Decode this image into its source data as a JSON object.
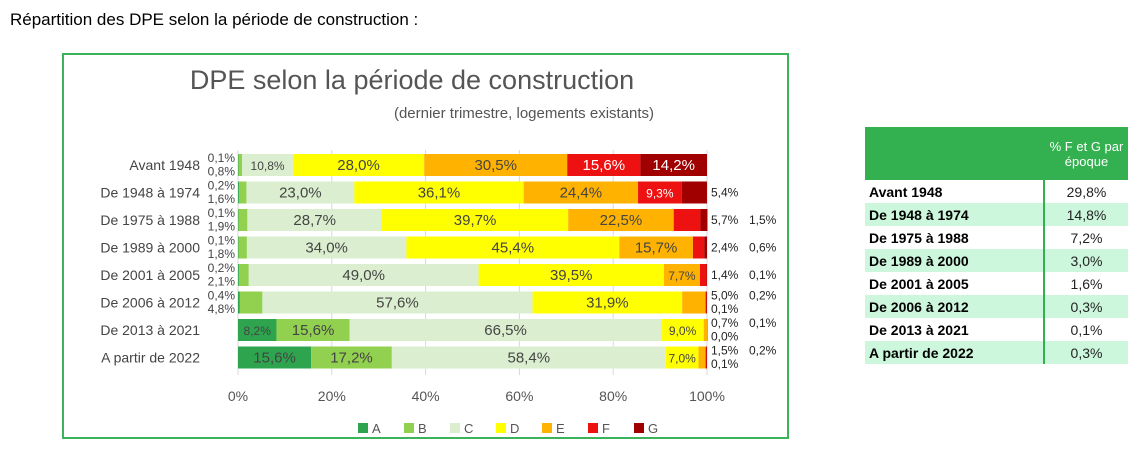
{
  "heading": "Répartition des DPE selon la période de construction :",
  "chart_data": {
    "type": "bar",
    "orientation": "horizontal-stacked-100",
    "title": "DPE selon la période de construction",
    "subtitle": "(dernier trimestre, logements existants)",
    "categories": [
      "Avant 1948",
      "De 1948 à 1974",
      "De 1975 à 1988",
      "De 1989 à 2000",
      "De 2001 à 2005",
      "De 2006 à 2012",
      "De 2013 à 2021",
      "A partir de 2022"
    ],
    "x_ticks": [
      "0%",
      "20%",
      "40%",
      "60%",
      "80%",
      "100%"
    ],
    "xlim": [
      0,
      100
    ],
    "grid": true,
    "legend": "bottom",
    "series": [
      {
        "name": "A",
        "color": "#2ea44f",
        "values": [
          0.1,
          0.2,
          0.1,
          0.1,
          0.2,
          0.4,
          8.2,
          15.6
        ],
        "labels": [
          "0,1%",
          "0,2%",
          "0,1%",
          "0,1%",
          "0,2%",
          "0,4%",
          "8,2%",
          "15,6%"
        ]
      },
      {
        "name": "B",
        "color": "#92d050",
        "values": [
          0.8,
          1.6,
          1.9,
          1.8,
          2.1,
          4.8,
          15.6,
          17.2
        ],
        "labels": [
          "0,8%",
          "1,6%",
          "1,9%",
          "1,8%",
          "2,1%",
          "4,8%",
          "15,6%",
          "17,2%"
        ]
      },
      {
        "name": "C",
        "color": "#dbefd0",
        "values": [
          10.8,
          23.0,
          28.7,
          34.0,
          49.0,
          57.6,
          66.5,
          58.4
        ],
        "labels": [
          "10,8%",
          "23,0%",
          "28,7%",
          "34,0%",
          "49,0%",
          "57,6%",
          "66,5%",
          "58,4%"
        ]
      },
      {
        "name": "D",
        "color": "#ffff00",
        "values": [
          28.0,
          36.1,
          39.7,
          45.4,
          39.5,
          31.9,
          9.0,
          7.0
        ],
        "labels": [
          "28,0%",
          "36,1%",
          "39,7%",
          "45,4%",
          "39,5%",
          "31,9%",
          "9,0%",
          "7,0%"
        ]
      },
      {
        "name": "E",
        "color": "#ffb300",
        "values": [
          30.5,
          24.4,
          22.5,
          15.7,
          7.7,
          5.0,
          0.7,
          1.5
        ],
        "labels": [
          "30,5%",
          "24,4%",
          "22,5%",
          "15,7%",
          "7,7%",
          "5,0%",
          "0,7%",
          "1,5%"
        ]
      },
      {
        "name": "F",
        "color": "#ee1111",
        "values": [
          15.6,
          9.3,
          5.7,
          2.4,
          1.4,
          0.2,
          0.1,
          0.2
        ],
        "labels": [
          "15,6%",
          "9,3%",
          "5,7%",
          "2,4%",
          "1,4%",
          "0,2%",
          "0,1%",
          "0,2%"
        ]
      },
      {
        "name": "G",
        "color": "#a00000",
        "values": [
          14.2,
          5.4,
          1.5,
          0.6,
          0.1,
          0.1,
          0.0,
          0.1
        ],
        "labels": [
          "14,2%",
          "5,4%",
          "1,5%",
          "0,6%",
          "0,1%",
          "0,1%",
          "0,0%",
          "0,1%"
        ]
      }
    ]
  },
  "table": {
    "header": "% F et G par époque",
    "rows": [
      {
        "label": "Avant 1948",
        "value": "29,8%"
      },
      {
        "label": "De 1948 à 1974",
        "value": "14,8%"
      },
      {
        "label": "De 1975 à 1988",
        "value": "7,2%"
      },
      {
        "label": "De 1989 à 2000",
        "value": "3,0%"
      },
      {
        "label": "De 2001 à 2005",
        "value": "1,6%"
      },
      {
        "label": "De 2006 à 2012",
        "value": "0,3%"
      },
      {
        "label": "De 2013 à 2021",
        "value": "0,1%"
      },
      {
        "label": "A partir de 2022",
        "value": "0,3%"
      }
    ]
  }
}
